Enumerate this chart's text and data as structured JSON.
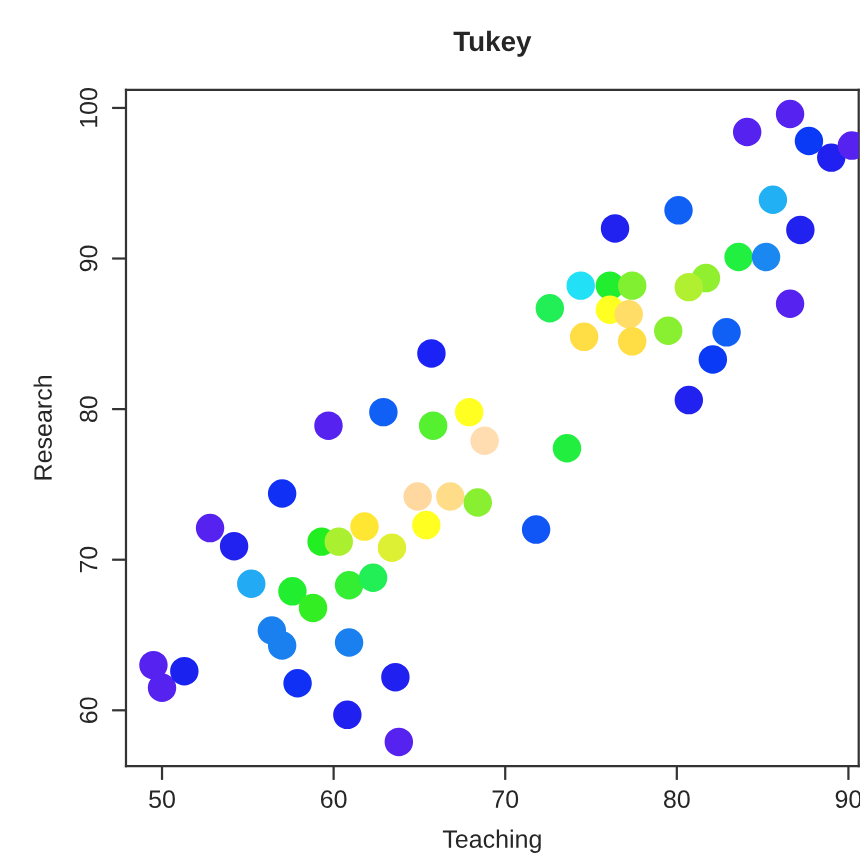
{
  "chart_data": {
    "type": "scatter",
    "title": "Tukey",
    "xlabel": "Teaching",
    "ylabel": "Research",
    "x": [
      65.7,
      59.7,
      62.9,
      65.8,
      67.9,
      68.8,
      86.6,
      84.1,
      87.7,
      89.0,
      90.2,
      85.6,
      80.1,
      76.4,
      87.2,
      83.6,
      85.2,
      86.6,
      81.7,
      80.7,
      74.4,
      76.1,
      77.4,
      72.6,
      76.1,
      77.2,
      74.6,
      77.4,
      79.5,
      82.9,
      82.1,
      80.7,
      73.6,
      71.8,
      57.0,
      52.8,
      54.2,
      55.2,
      57.6,
      58.8,
      59.3,
      60.3,
      61.8,
      63.4,
      65.4,
      64.9,
      66.8,
      68.4,
      60.9,
      62.3,
      56.4,
      57.0,
      60.9,
      49.5,
      50.0,
      51.3,
      57.9,
      63.6,
      60.8,
      63.8
    ],
    "series": [
      {
        "values": [
          83.7,
          78.9,
          79.8,
          78.9,
          79.8,
          77.9,
          99.6,
          98.4,
          97.8,
          96.7,
          97.5,
          93.9,
          93.2,
          92.0,
          91.9,
          90.1,
          90.1,
          87.0,
          88.7,
          88.1,
          88.2,
          88.2,
          88.2,
          86.7,
          86.6,
          86.3,
          84.8,
          84.5,
          85.2,
          85.1,
          83.3,
          80.6,
          77.4,
          72.0,
          74.4,
          72.1,
          70.9,
          68.4,
          67.9,
          66.8,
          71.2,
          71.2,
          72.2,
          70.8,
          72.3,
          74.2,
          74.2,
          73.8,
          68.3,
          68.8,
          65.3,
          64.3,
          64.5,
          63.0,
          61.5,
          62.6,
          61.8,
          62.2,
          59.7,
          57.9
        ],
        "colors": [
          "#1a22f5",
          "#5522f0",
          "#1060f5",
          "#55f030",
          "#ffff22",
          "#ffddb0",
          "#5522f0",
          "#5522f0",
          "#0a3af5",
          "#2020f0",
          "#5522f0",
          "#22b0f5",
          "#1060f5",
          "#2222f0",
          "#2222f0",
          "#22f040",
          "#1a88f0",
          "#5522f0",
          "#90f030",
          "#b0f030",
          "#22e0f5",
          "#22ee30",
          "#80f030",
          "#22ee55",
          "#ffff22",
          "#ffdd66",
          "#ffdd44",
          "#ffdd44",
          "#88f030",
          "#1060f5",
          "#0a3af5",
          "#2222f0",
          "#22ee40",
          "#1055f5",
          "#1030f5",
          "#5522f0",
          "#2222f0",
          "#22aaf5",
          "#22ee30",
          "#33ee22",
          "#22ee22",
          "#aaf030",
          "#ffe633",
          "#ddf033",
          "#ffff22",
          "#ffd8a0",
          "#ffdd88",
          "#88f030",
          "#33ee33",
          "#22ee55",
          "#1a80f0",
          "#1a80f0",
          "#1a80f0",
          "#5522f0",
          "#5522f0",
          "#1a22f0",
          "#1030f5",
          "#2020f0",
          "#2020f0",
          "#5522f0"
        ]
      }
    ],
    "xlim": [
      47.9,
      90.6
    ],
    "ylim": [
      56.3,
      101.2
    ],
    "xticks": [
      50,
      60,
      70,
      80,
      90
    ],
    "yticks": [
      60,
      70,
      80,
      90,
      100
    ],
    "marker": "circle",
    "grid": false,
    "legend": false
  }
}
